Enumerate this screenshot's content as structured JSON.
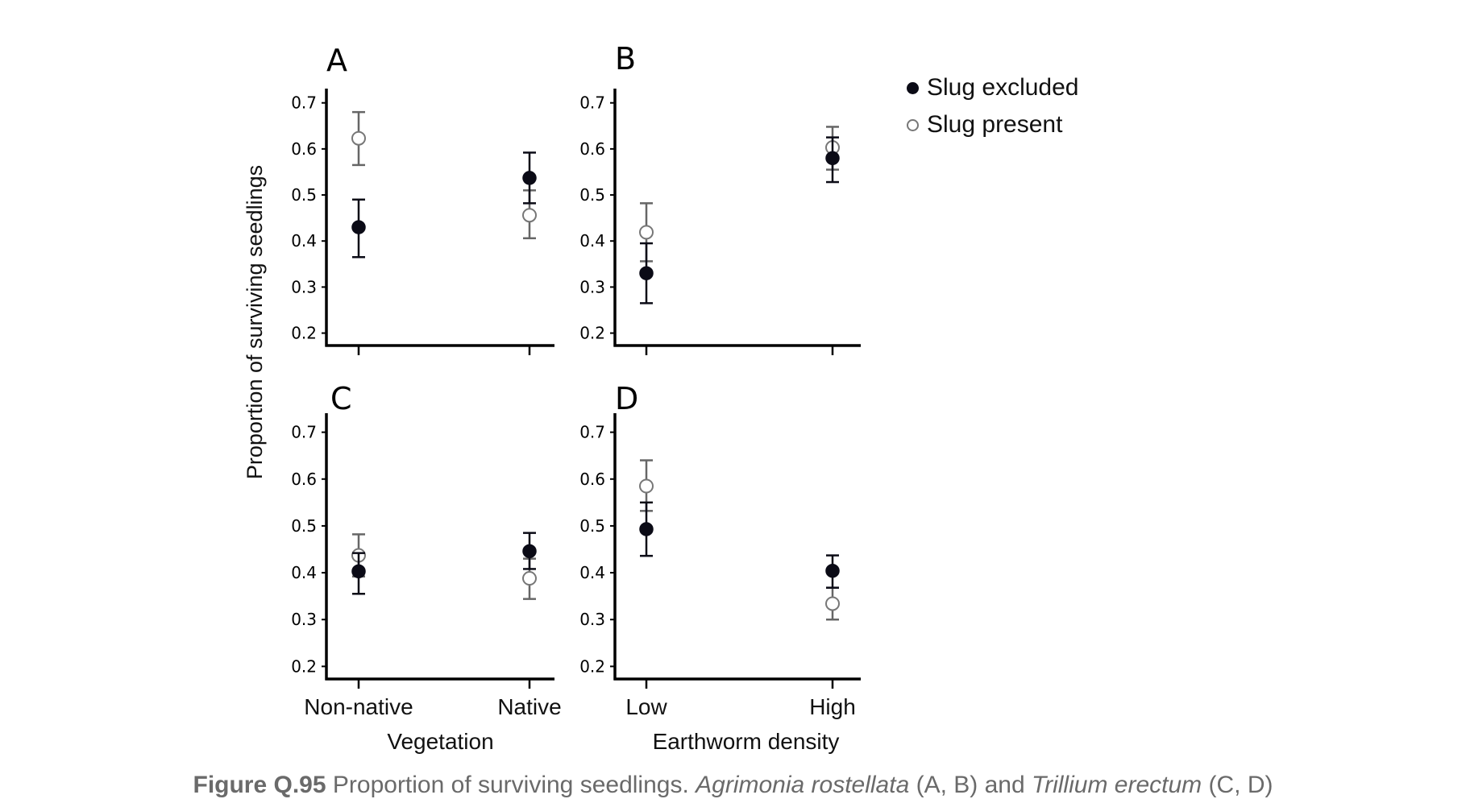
{
  "caption": {
    "label": "Figure Q.95",
    "text": "Proportion of surviving seedlings.",
    "species1": "Agrimonia rostellata",
    "panels1": "(A, B) and",
    "species2": "Trillium erectum",
    "panels2": "(C, D)"
  },
  "legend": [
    {
      "label": "Slug excluded",
      "color": "#0b0b16",
      "fill": "filled"
    },
    {
      "label": "Slug present",
      "color": "#777777",
      "fill": "open"
    }
  ],
  "ylabel": "Proportion of surviving seedlings",
  "colors": {
    "excluded": "#0b0b16",
    "present": "#666666",
    "axis": "#000000"
  },
  "chart_data": [
    {
      "type": "scatter",
      "panel": "A",
      "title": "A",
      "categories": [
        "Non-native",
        "Native"
      ],
      "xlabel": "",
      "ylabel": "Proportion of surviving seedlings",
      "ylim": [
        0.18,
        0.71
      ],
      "yticks": [
        "0.2",
        "0.3",
        "0.4",
        "0.5",
        "0.6",
        "0.7"
      ],
      "series": [
        {
          "name": "Slug excluded",
          "values": [
            0.43,
            0.537
          ],
          "err_low": [
            0.365,
            0.482
          ],
          "err_high": [
            0.49,
            0.592
          ]
        },
        {
          "name": "Slug present",
          "values": [
            0.623,
            0.456
          ],
          "err_low": [
            0.565,
            0.406
          ],
          "err_high": [
            0.68,
            0.51
          ]
        }
      ]
    },
    {
      "type": "scatter",
      "panel": "B",
      "title": "B",
      "categories": [
        "Low",
        "High"
      ],
      "xlabel": "",
      "ylabel": "",
      "ylim": [
        0.18,
        0.71
      ],
      "yticks": [
        "0.2",
        "0.3",
        "0.4",
        "0.5",
        "0.6",
        "0.7"
      ],
      "series": [
        {
          "name": "Slug excluded",
          "values": [
            0.33,
            0.58
          ],
          "err_low": [
            0.265,
            0.528
          ],
          "err_high": [
            0.395,
            0.625
          ]
        },
        {
          "name": "Slug present",
          "values": [
            0.419,
            0.603
          ],
          "err_low": [
            0.356,
            0.555
          ],
          "err_high": [
            0.482,
            0.648
          ]
        }
      ]
    },
    {
      "type": "scatter",
      "panel": "C",
      "title": "C",
      "categories": [
        "Non-native",
        "Native"
      ],
      "xlabel": "Vegetation",
      "ylabel": "Proportion of surviving seedlings",
      "ylim": [
        0.18,
        0.72
      ],
      "yticks": [
        "0.2",
        "0.3",
        "0.4",
        "0.5",
        "0.6",
        "0.7"
      ],
      "series": [
        {
          "name": "Slug excluded",
          "values": [
            0.403,
            0.446
          ],
          "err_low": [
            0.355,
            0.408
          ],
          "err_high": [
            0.442,
            0.485
          ]
        },
        {
          "name": "Slug present",
          "values": [
            0.437,
            0.388
          ],
          "err_low": [
            0.392,
            0.344
          ],
          "err_high": [
            0.482,
            0.43
          ]
        }
      ]
    },
    {
      "type": "scatter",
      "panel": "D",
      "title": "D",
      "categories": [
        "Low",
        "High"
      ],
      "xlabel": "Earthworm density",
      "ylabel": "",
      "ylim": [
        0.18,
        0.72
      ],
      "yticks": [
        "0.2",
        "0.3",
        "0.4",
        "0.5",
        "0.6",
        "0.7"
      ],
      "series": [
        {
          "name": "Slug excluded",
          "values": [
            0.493,
            0.404
          ],
          "err_low": [
            0.436,
            0.368
          ],
          "err_high": [
            0.55,
            0.437
          ]
        },
        {
          "name": "Slug present",
          "values": [
            0.585,
            0.334
          ],
          "err_low": [
            0.532,
            0.3
          ],
          "err_high": [
            0.64,
            0.368
          ]
        }
      ]
    }
  ]
}
